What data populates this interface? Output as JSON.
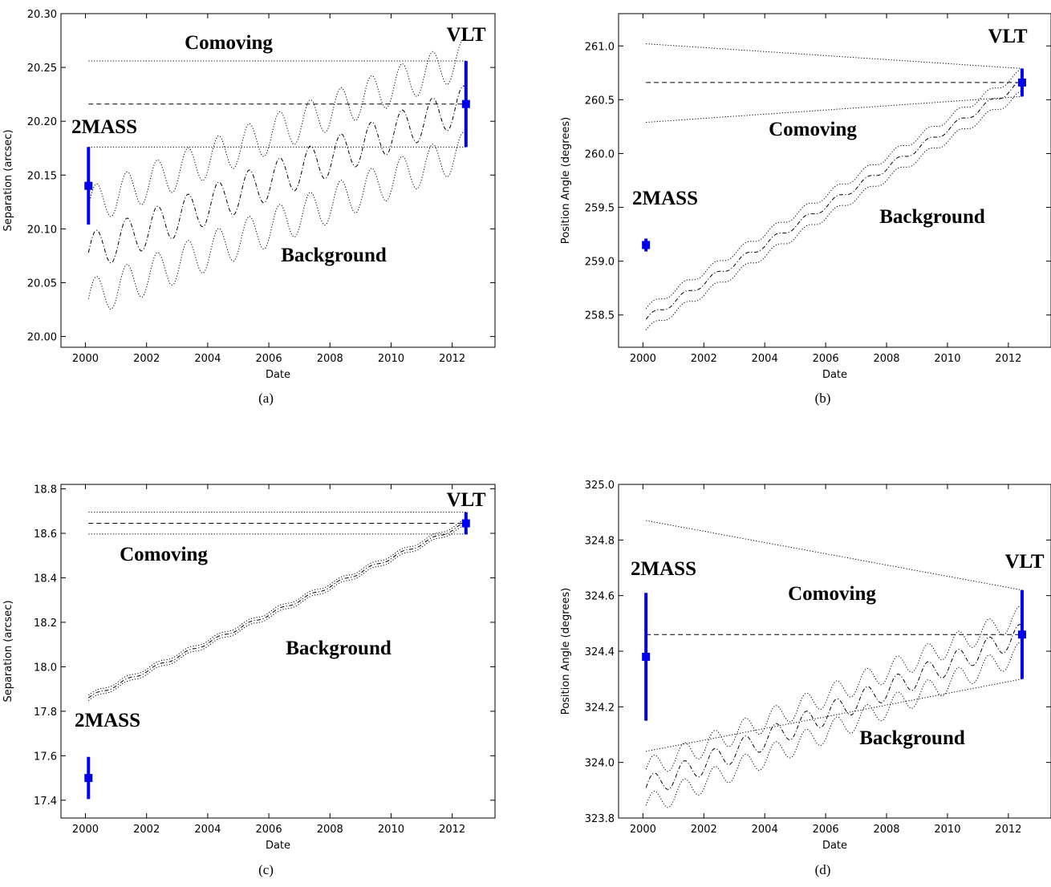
{
  "chart_data": [
    {
      "type": "line",
      "panel_caption": "(a)",
      "xlabel": "Date",
      "ylabel": "Separation (arcsec)",
      "xlim": [
        1999.2,
        2013.4
      ],
      "ylim": [
        19.99,
        20.3
      ],
      "xticks": [
        "2000",
        "2002",
        "2004",
        "2006",
        "2008",
        "2010",
        "2012"
      ],
      "yticks": [
        "20.00",
        "20.05",
        "20.10",
        "20.15",
        "20.20",
        "20.25",
        "20.30"
      ],
      "points": [
        {
          "name": "2MASS",
          "x": 2000.1,
          "y": 20.14,
          "err": 0.036
        },
        {
          "name": "VLT",
          "x": 2012.45,
          "y": 20.216,
          "err": 0.04
        }
      ],
      "comoving": {
        "x": [
          2000.1,
          2012.45
        ],
        "center": 20.216,
        "upper": 20.256,
        "lower": 20.176
      },
      "background": {
        "start": 20.078,
        "end": 20.216,
        "amplitude": 0.018,
        "offset": 0.043,
        "period": 1.0
      },
      "annotations": [
        "Comoving",
        "Background",
        "2MASS",
        "VLT"
      ],
      "legend": "none"
    },
    {
      "type": "line",
      "panel_caption": "(b)",
      "xlabel": "Date",
      "ylabel": "Position Angle (degrees)",
      "xlim": [
        1999.2,
        2013.4
      ],
      "ylim": [
        258.2,
        261.3
      ],
      "xticks": [
        "2000",
        "2002",
        "2004",
        "2006",
        "2008",
        "2010",
        "2012"
      ],
      "yticks": [
        "258.5",
        "259.0",
        "259.5",
        "260.0",
        "260.5",
        "261.0"
      ],
      "points": [
        {
          "name": "2MASS",
          "x": 2000.1,
          "y": 259.15,
          "err": 0.06
        },
        {
          "name": "VLT",
          "x": 2012.45,
          "y": 260.66,
          "err": 0.13
        }
      ],
      "comoving": {
        "x": [
          2000.1,
          2012.45
        ],
        "center": 260.66,
        "upper_start": 261.02,
        "upper_end": 260.79,
        "lower_start": 260.29,
        "lower_end": 260.53
      },
      "background": {
        "start": 258.46,
        "end": 260.66,
        "amplitude": 0.03,
        "offset": 0.1,
        "period": 1.0
      },
      "annotations": [
        "Comoving",
        "Background",
        "2MASS",
        "VLT"
      ],
      "legend": "none"
    },
    {
      "type": "line",
      "panel_caption": "(c)",
      "xlabel": "Date",
      "ylabel": "Separation (arcsec)",
      "xlim": [
        1999.2,
        2013.4
      ],
      "ylim": [
        17.32,
        18.82
      ],
      "xticks": [
        "2000",
        "2002",
        "2004",
        "2006",
        "2008",
        "2010",
        "2012"
      ],
      "yticks": [
        "17.4",
        "17.6",
        "17.8",
        "18.0",
        "18.2",
        "18.4",
        "18.6",
        "18.8"
      ],
      "points": [
        {
          "name": "2MASS",
          "x": 2000.1,
          "y": 17.5,
          "err": 0.095
        },
        {
          "name": "VLT",
          "x": 2012.45,
          "y": 18.645,
          "err": 0.05
        }
      ],
      "comoving": {
        "x": [
          2000.1,
          2012.45
        ],
        "center": 18.645,
        "upper": 18.695,
        "lower": 18.597
      },
      "background": {
        "start": 17.86,
        "end": 18.645,
        "amplitude": 0.007,
        "offset": 0.012,
        "period": 1.0
      },
      "annotations": [
        "Comoving",
        "Background",
        "2MASS",
        "VLT"
      ],
      "legend": "none"
    },
    {
      "type": "line",
      "panel_caption": "(d)",
      "xlabel": "Date",
      "ylabel": "Position Angle (degrees)",
      "xlim": [
        1999.2,
        2013.4
      ],
      "ylim": [
        323.8,
        325.0
      ],
      "xticks": [
        "2000",
        "2002",
        "2004",
        "2006",
        "2008",
        "2010",
        "2012"
      ],
      "yticks": [
        "323.8",
        "324.0",
        "324.2",
        "324.4",
        "324.6",
        "324.8",
        "325.0"
      ],
      "points": [
        {
          "name": "2MASS",
          "x": 2000.1,
          "y": 324.38,
          "err": 0.23
        },
        {
          "name": "VLT",
          "x": 2012.45,
          "y": 324.46,
          "err": 0.16
        }
      ],
      "comoving": {
        "x": [
          2000.1,
          2012.45
        ],
        "center": 324.46,
        "upper_start": 324.87,
        "upper_end": 324.62,
        "lower_start": 324.04,
        "lower_end": 324.3
      },
      "background": {
        "start": 323.91,
        "end": 324.46,
        "amplitude": 0.04,
        "offset": 0.065,
        "period": 1.0
      },
      "annotations": [
        "Comoving",
        "Background",
        "2MASS",
        "VLT"
      ],
      "legend": "none"
    }
  ]
}
